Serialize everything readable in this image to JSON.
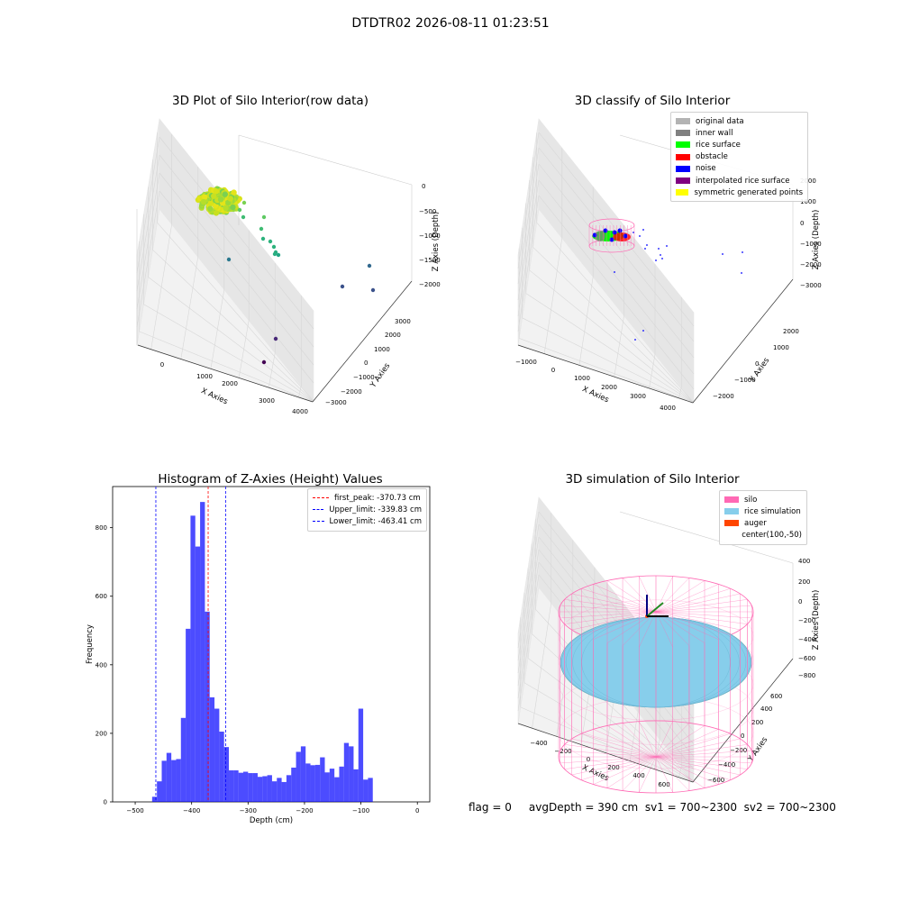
{
  "suptitle": "DTDTR02 2026-08-11 01:23:51",
  "status_text": "flag = 0     avgDepth = 390 cm  sv1 = 700~2300  sv2 = 700~2300",
  "chart_data": [
    {
      "type": "scatter",
      "projection": "3d",
      "title": "3D Plot of Silo Interior(row data)",
      "xlabel": "X Axies",
      "ylabel": "Y Axies",
      "zlabel": "Z Axies (Depth)",
      "x_ticks": [
        "0",
        "1000",
        "2000",
        "3000",
        "4000"
      ],
      "y_ticks": [
        "−3000",
        "−2000",
        "−1000",
        "0",
        "1000",
        "2000",
        "3000"
      ],
      "z_ticks": [
        "0",
        "−500",
        "−1000",
        "−1500",
        "−2000"
      ],
      "xlim": [
        -500,
        4000
      ],
      "ylim": [
        -3000,
        3000
      ],
      "zlim": [
        -2300,
        0
      ],
      "colormap": "viridis (by depth)",
      "grid": true
    },
    {
      "type": "scatter",
      "projection": "3d",
      "title": "3D classify of Silo Interior",
      "xlabel": "X Axies",
      "ylabel": "Y Axies",
      "zlabel": "Z Axies (Depth)",
      "x_ticks": [
        "−1000",
        "0",
        "1000",
        "2000",
        "3000",
        "4000"
      ],
      "y_ticks": [
        "−2000",
        "−1000",
        "0",
        "1000",
        "2000"
      ],
      "z_ticks": [
        "2000",
        "1000",
        "0",
        "−1000",
        "−2000",
        "−3000"
      ],
      "legend_position": "top-right",
      "legend": [
        {
          "label": "original data",
          "color": "#b3b3b3"
        },
        {
          "label": "inner wall",
          "color": "#808080"
        },
        {
          "label": "rice surface",
          "color": "#00ff00"
        },
        {
          "label": "obstacle",
          "color": "#ff0000"
        },
        {
          "label": "noise",
          "color": "#0000ff"
        },
        {
          "label": "interpolated rice surface",
          "color": "#800080"
        },
        {
          "label": "symmetric generated points",
          "color": "#ffff00"
        }
      ],
      "grid": true
    },
    {
      "type": "bar",
      "title": "Histogram of Z-Axies (Height) Values",
      "xlabel": "Depth (cm)",
      "ylabel": "Frequency",
      "xlim": [
        -540,
        22
      ],
      "ylim": [
        0,
        920
      ],
      "x_ticks": [
        -500,
        -400,
        -300,
        -200,
        -100,
        0
      ],
      "y_ticks": [
        0,
        200,
        400,
        600,
        800
      ],
      "bin_width": 8.5,
      "bin_start": -470,
      "values": [
        15,
        60,
        120,
        143,
        122,
        125,
        245,
        505,
        835,
        745,
        875,
        555,
        305,
        272,
        205,
        160,
        92,
        92,
        85,
        88,
        84,
        84,
        73,
        75,
        78,
        60,
        70,
        58,
        78,
        100,
        146,
        162,
        112,
        107,
        108,
        130,
        86,
        97,
        72,
        103,
        172,
        162,
        95,
        272,
        65,
        70
      ],
      "color": "#0000ff",
      "legend_position": "top-right",
      "lines": [
        {
          "label": "first_peak: -370.73 cm",
          "value": -370.73,
          "color": "#ff0000"
        },
        {
          "label": "Upper_limit: -339.83 cm",
          "value": -339.83,
          "color": "#0000ff"
        },
        {
          "label": "Lower_limit: -463.41 cm",
          "value": -463.41,
          "color": "#0000ff"
        }
      ]
    },
    {
      "type": "scatter",
      "projection": "3d",
      "title": "3D simulation of Silo Interior",
      "xlabel": "X Axies",
      "ylabel": "Y Axies",
      "zlabel": "Z Axies (Depth)",
      "x_ticks": [
        "−400",
        "−200",
        "0",
        "200",
        "400",
        "600"
      ],
      "y_ticks": [
        "−600",
        "−400",
        "−200",
        "0",
        "200",
        "400",
        "600"
      ],
      "z_ticks": [
        "400",
        "200",
        "0",
        "−200",
        "−400",
        "−600",
        "−800"
      ],
      "legend_position": "top-right",
      "legend": [
        {
          "label": "silo",
          "color": "#ff69b4"
        },
        {
          "label": "rice simulation",
          "color": "#87ceeb"
        },
        {
          "label": "auger",
          "color": "#ff4500"
        },
        {
          "label": "center(100,-50)",
          "color": ""
        }
      ],
      "grid": true
    }
  ]
}
